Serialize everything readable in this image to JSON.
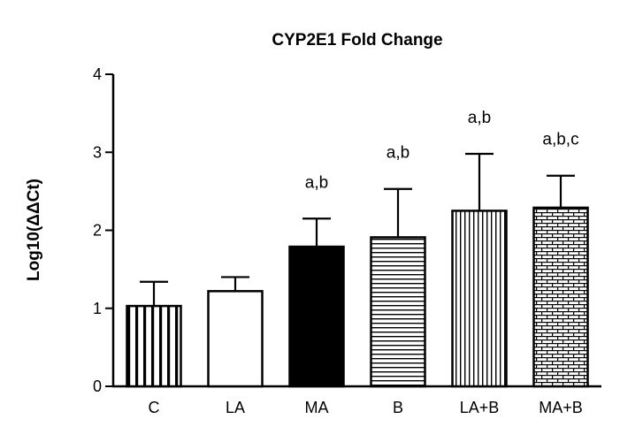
{
  "chart_data": {
    "type": "bar",
    "title": "CYP2E1 Fold Change",
    "xlabel": "",
    "ylabel": "Log10(ΔΔCt)",
    "ylim": [
      0,
      4
    ],
    "yticks": [
      "0",
      "1",
      "2",
      "3",
      "4"
    ],
    "grid": false,
    "categories": [
      "C",
      "LA",
      "MA",
      "B",
      "LA+B",
      "MA+B"
    ],
    "values": [
      1.03,
      1.22,
      1.79,
      1.91,
      2.25,
      2.29
    ],
    "error": [
      0.31,
      0.18,
      0.36,
      0.62,
      0.73,
      0.41
    ],
    "annotations": [
      "",
      "",
      "a,b",
      "a,b",
      "a,b",
      "a,b,c"
    ],
    "patterns": [
      "vertical-lines",
      "white",
      "black",
      "horizontal-lines",
      "dense-vertical-lines",
      "brick"
    ]
  }
}
